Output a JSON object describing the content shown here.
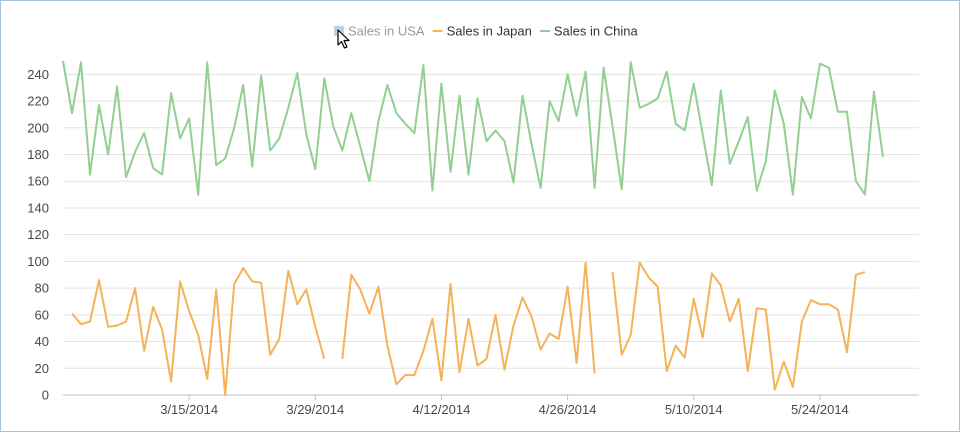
{
  "chart_data": {
    "type": "line",
    "title": "",
    "xlabel": "",
    "ylabel": "",
    "ylim": [
      0,
      250
    ],
    "yticks": [
      0,
      20,
      40,
      60,
      80,
      100,
      120,
      140,
      160,
      180,
      200,
      220,
      240
    ],
    "xlim": [
      "2014-03-01",
      "2014-06-04"
    ],
    "xticks": [
      {
        "date": "2014-03-15",
        "label": "3/15/2014"
      },
      {
        "date": "2014-03-29",
        "label": "3/29/2014"
      },
      {
        "date": "2014-04-12",
        "label": "4/12/2014"
      },
      {
        "date": "2014-04-26",
        "label": "4/26/2014"
      },
      {
        "date": "2014-05-10",
        "label": "5/10/2014"
      },
      {
        "date": "2014-05-24",
        "label": "5/24/2014"
      }
    ],
    "grid": true,
    "legend_position": "top-center",
    "series": [
      {
        "name": "Sales in USA",
        "visible": false,
        "color": "#a9c8e8",
        "points": []
      },
      {
        "name": "Sales in Japan",
        "visible": true,
        "color": "#f5b256",
        "points": [
          [
            "2014-03-02",
            61
          ],
          [
            "2014-03-03",
            53
          ],
          [
            "2014-03-04",
            55
          ],
          [
            "2014-03-05",
            86
          ],
          [
            "2014-03-06",
            51
          ],
          [
            "2014-03-07",
            52
          ],
          [
            "2014-03-08",
            55
          ],
          [
            "2014-03-09",
            80
          ],
          [
            "2014-03-10",
            33
          ],
          [
            "2014-03-11",
            66
          ],
          [
            "2014-03-12",
            49
          ],
          [
            "2014-03-13",
            10
          ],
          [
            "2014-03-14",
            85
          ],
          [
            "2014-03-15",
            63
          ],
          [
            "2014-03-16",
            45
          ],
          [
            "2014-03-17",
            12
          ],
          [
            "2014-03-18",
            79
          ],
          [
            "2014-03-19",
            0
          ],
          [
            "2014-03-20",
            83
          ],
          [
            "2014-03-21",
            95
          ],
          [
            "2014-03-22",
            85
          ],
          [
            "2014-03-23",
            84
          ],
          [
            "2014-03-24",
            30
          ],
          [
            "2014-03-25",
            42
          ],
          [
            "2014-03-26",
            93
          ],
          [
            "2014-03-27",
            68
          ],
          [
            "2014-03-28",
            79
          ],
          [
            "2014-03-29",
            51
          ],
          [
            "2014-03-30",
            27
          ],
          [
            "2014-03-31",
            null
          ],
          [
            "2014-04-01",
            27
          ],
          [
            "2014-04-02",
            90
          ],
          [
            "2014-04-03",
            79
          ],
          [
            "2014-04-04",
            61
          ],
          [
            "2014-04-05",
            81
          ],
          [
            "2014-04-06",
            37
          ],
          [
            "2014-04-07",
            8
          ],
          [
            "2014-04-08",
            15
          ],
          [
            "2014-04-09",
            15
          ],
          [
            "2014-04-10",
            33
          ],
          [
            "2014-04-11",
            57
          ],
          [
            "2014-04-12",
            11
          ],
          [
            "2014-04-13",
            83
          ],
          [
            "2014-04-14",
            17
          ],
          [
            "2014-04-15",
            57
          ],
          [
            "2014-04-16",
            22
          ],
          [
            "2014-04-17",
            27
          ],
          [
            "2014-04-18",
            60
          ],
          [
            "2014-04-19",
            19
          ],
          [
            "2014-04-20",
            52
          ],
          [
            "2014-04-21",
            73
          ],
          [
            "2014-04-22",
            59
          ],
          [
            "2014-04-23",
            34
          ],
          [
            "2014-04-24",
            46
          ],
          [
            "2014-04-25",
            42
          ],
          [
            "2014-04-26",
            81
          ],
          [
            "2014-04-27",
            24
          ],
          [
            "2014-04-28",
            99
          ],
          [
            "2014-04-29",
            16
          ],
          [
            "2014-04-30",
            null
          ],
          [
            "2014-05-01",
            92
          ],
          [
            "2014-05-02",
            30
          ],
          [
            "2014-05-03",
            45
          ],
          [
            "2014-05-04",
            99
          ],
          [
            "2014-05-05",
            88
          ],
          [
            "2014-05-06",
            81
          ],
          [
            "2014-05-07",
            18
          ],
          [
            "2014-05-08",
            37
          ],
          [
            "2014-05-09",
            28
          ],
          [
            "2014-05-10",
            72
          ],
          [
            "2014-05-11",
            43
          ],
          [
            "2014-05-12",
            91
          ],
          [
            "2014-05-13",
            82
          ],
          [
            "2014-05-14",
            55
          ],
          [
            "2014-05-15",
            72
          ],
          [
            "2014-05-16",
            18
          ],
          [
            "2014-05-17",
            65
          ],
          [
            "2014-05-18",
            64
          ],
          [
            "2014-05-19",
            4
          ],
          [
            "2014-05-20",
            25
          ],
          [
            "2014-05-21",
            6
          ],
          [
            "2014-05-22",
            55
          ],
          [
            "2014-05-23",
            71
          ],
          [
            "2014-05-24",
            68
          ],
          [
            "2014-05-25",
            68
          ],
          [
            "2014-05-26",
            64
          ],
          [
            "2014-05-27",
            32
          ],
          [
            "2014-05-28",
            90
          ],
          [
            "2014-05-29",
            92
          ]
        ]
      },
      {
        "name": "Sales in China",
        "visible": true,
        "color": "#92cf92",
        "points": [
          [
            "2014-03-01",
            250
          ],
          [
            "2014-03-02",
            211
          ],
          [
            "2014-03-03",
            249
          ],
          [
            "2014-03-04",
            165
          ],
          [
            "2014-03-05",
            217
          ],
          [
            "2014-03-06",
            180
          ],
          [
            "2014-03-07",
            231
          ],
          [
            "2014-03-08",
            163
          ],
          [
            "2014-03-09",
            182
          ],
          [
            "2014-03-10",
            196
          ],
          [
            "2014-03-11",
            170
          ],
          [
            "2014-03-12",
            165
          ],
          [
            "2014-03-13",
            226
          ],
          [
            "2014-03-14",
            192
          ],
          [
            "2014-03-15",
            207
          ],
          [
            "2014-03-16",
            150
          ],
          [
            "2014-03-17",
            249
          ],
          [
            "2014-03-18",
            172
          ],
          [
            "2014-03-19",
            177
          ],
          [
            "2014-03-20",
            200
          ],
          [
            "2014-03-21",
            232
          ],
          [
            "2014-03-22",
            171
          ],
          [
            "2014-03-23",
            239
          ],
          [
            "2014-03-24",
            183
          ],
          [
            "2014-03-25",
            192
          ],
          [
            "2014-03-26",
            215
          ],
          [
            "2014-03-27",
            241
          ],
          [
            "2014-03-28",
            195
          ],
          [
            "2014-03-29",
            169
          ],
          [
            "2014-03-30",
            237
          ],
          [
            "2014-03-31",
            201
          ],
          [
            "2014-04-01",
            183
          ],
          [
            "2014-04-02",
            211
          ],
          [
            "2014-04-03",
            186
          ],
          [
            "2014-04-04",
            160
          ],
          [
            "2014-04-05",
            205
          ],
          [
            "2014-04-06",
            232
          ],
          [
            "2014-04-07",
            211
          ],
          [
            "2014-04-08",
            203
          ],
          [
            "2014-04-09",
            196
          ],
          [
            "2014-04-10",
            247
          ],
          [
            "2014-04-11",
            153
          ],
          [
            "2014-04-12",
            233
          ],
          [
            "2014-04-13",
            167
          ],
          [
            "2014-04-14",
            224
          ],
          [
            "2014-04-15",
            165
          ],
          [
            "2014-04-16",
            222
          ],
          [
            "2014-04-17",
            190
          ],
          [
            "2014-04-18",
            198
          ],
          [
            "2014-04-19",
            190
          ],
          [
            "2014-04-20",
            159
          ],
          [
            "2014-04-21",
            224
          ],
          [
            "2014-04-22",
            188
          ],
          [
            "2014-04-23",
            155
          ],
          [
            "2014-04-24",
            220
          ],
          [
            "2014-04-25",
            205
          ],
          [
            "2014-04-26",
            240
          ],
          [
            "2014-04-27",
            209
          ],
          [
            "2014-04-28",
            242
          ],
          [
            "2014-04-29",
            155
          ],
          [
            "2014-04-30",
            245
          ],
          [
            "2014-05-01",
            201
          ],
          [
            "2014-05-02",
            154
          ],
          [
            "2014-05-03",
            249
          ],
          [
            "2014-05-04",
            215
          ],
          [
            "2014-05-05",
            218
          ],
          [
            "2014-05-06",
            222
          ],
          [
            "2014-05-07",
            242
          ],
          [
            "2014-05-08",
            203
          ],
          [
            "2014-05-09",
            198
          ],
          [
            "2014-05-10",
            233
          ],
          [
            "2014-05-11",
            195
          ],
          [
            "2014-05-12",
            157
          ],
          [
            "2014-05-13",
            228
          ],
          [
            "2014-05-14",
            173
          ],
          [
            "2014-05-15",
            190
          ],
          [
            "2014-05-16",
            208
          ],
          [
            "2014-05-17",
            153
          ],
          [
            "2014-05-18",
            175
          ],
          [
            "2014-05-19",
            228
          ],
          [
            "2014-05-20",
            203
          ],
          [
            "2014-05-21",
            150
          ],
          [
            "2014-05-22",
            223
          ],
          [
            "2014-05-23",
            207
          ],
          [
            "2014-05-24",
            248
          ],
          [
            "2014-05-25",
            245
          ],
          [
            "2014-05-26",
            212
          ],
          [
            "2014-05-27",
            212
          ],
          [
            "2014-05-28",
            160
          ],
          [
            "2014-05-29",
            150
          ],
          [
            "2014-05-30",
            227
          ],
          [
            "2014-05-31",
            178
          ]
        ]
      }
    ]
  }
}
